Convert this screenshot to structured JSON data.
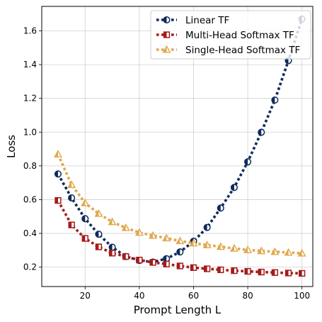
{
  "chart_data": {
    "type": "line",
    "title": "",
    "xlabel": "Prompt Length L",
    "ylabel": "Loss",
    "xlim": [
      4,
      104
    ],
    "ylim": [
      0.085,
      1.745
    ],
    "x_ticks": [
      20,
      40,
      60,
      80,
      100
    ],
    "y_ticks": [
      0.2,
      0.4,
      0.6,
      0.8,
      1.0,
      1.2,
      1.4,
      1.6
    ],
    "y_tick_labels": [
      "0.2",
      "0.4",
      "0.6",
      "0.8",
      "1.0",
      "1.2",
      "1.4",
      "1.6"
    ],
    "grid": true,
    "legend_position": "top-right",
    "series": [
      {
        "name": "Linear TF",
        "color": "#0f2a5c",
        "marker": "circle-half",
        "x": [
          10,
          15,
          20,
          25,
          30,
          35,
          40,
          45,
          50,
          55,
          60,
          65,
          70,
          75,
          80,
          85,
          90,
          95,
          100
        ],
        "y": [
          0.752,
          0.61,
          0.487,
          0.395,
          0.318,
          0.263,
          0.24,
          0.23,
          0.25,
          0.29,
          0.353,
          0.435,
          0.55,
          0.672,
          0.824,
          0.999,
          1.19,
          1.424,
          1.67
        ]
      },
      {
        "name": "Multi-Head Softmax TF",
        "color": "#a61b1b",
        "marker": "square-half",
        "x": [
          10,
          15,
          20,
          25,
          30,
          35,
          40,
          45,
          50,
          55,
          60,
          65,
          70,
          75,
          80,
          85,
          90,
          95,
          100
        ],
        "y": [
          0.595,
          0.45,
          0.37,
          0.32,
          0.283,
          0.263,
          0.242,
          0.228,
          0.218,
          0.207,
          0.197,
          0.19,
          0.184,
          0.179,
          0.175,
          0.171,
          0.168,
          0.165,
          0.163
        ]
      },
      {
        "name": "Single-Head Softmax TF",
        "color": "#e0a84e",
        "marker": "triangle-half",
        "x": [
          10,
          15,
          20,
          25,
          30,
          35,
          40,
          45,
          50,
          55,
          60,
          65,
          70,
          75,
          80,
          85,
          90,
          95,
          100
        ],
        "y": [
          0.869,
          0.688,
          0.58,
          0.517,
          0.468,
          0.433,
          0.405,
          0.387,
          0.372,
          0.355,
          0.342,
          0.331,
          0.321,
          0.311,
          0.302,
          0.296,
          0.291,
          0.287,
          0.282
        ]
      }
    ]
  }
}
